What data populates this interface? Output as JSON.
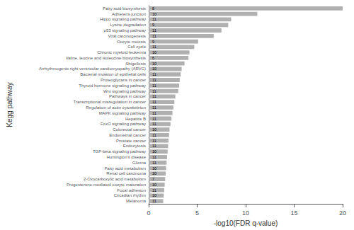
{
  "chart_data": {
    "type": "bar",
    "orientation": "horizontal",
    "categories": [
      "Fatty acid biosynthesis",
      "Adherens junction",
      "Hippo signaling pathway",
      "Lysine degradation",
      "p53 signaling pathway",
      "Viral carcinogenesis",
      "Oocyte meiosis",
      "Cell cycle",
      "Chronic myeloid leukemia",
      "Valine, leucine and isoleucine biosynthesis",
      "Shigellosis",
      "Arrhythmogenic right ventricular cardiomyopathy (ARVC)",
      "Bacterial invasion of epithelial cells",
      "Proteoglycans in cancer",
      "Thyroid hormone signaling pathway",
      "Wnt signaling pathway",
      "Pathways in cancer",
      "Transcriptional misregulation in cancer",
      "Regulation of actin cytoskeleton",
      "MAPK signaling pathway",
      "Hepatitis B",
      "FoxO signaling pathway",
      "Colorectal cancer",
      "Endometrial cancer",
      "Prostate cancer",
      "Endocytosis",
      "TGF-beta signaling pathway",
      "Huntington's disease",
      "Glioma",
      "Fatty acid metabolism",
      "Renal cell carcinoma",
      "2-Oxocarboxylic acid metabolism",
      "Progesterone-mediated oocyte maturation",
      "Focal adhesion",
      "Circadian rhythm",
      "Melanoma"
    ],
    "values": [
      20.0,
      11.2,
      8.5,
      8.2,
      7.5,
      6.7,
      5.1,
      4.7,
      4.2,
      4.1,
      3.7,
      3.4,
      3.3,
      3.2,
      3.15,
      3.05,
      2.75,
      2.65,
      2.55,
      2.45,
      2.35,
      2.25,
      2.15,
      2.1,
      2.05,
      2.0,
      1.95,
      1.9,
      1.85,
      1.8,
      1.75,
      1.7,
      1.65,
      1.6,
      1.55,
      1.5
    ],
    "counts": [
      8,
      10,
      11,
      9,
      11,
      11,
      9,
      11,
      10,
      6,
      10,
      10,
      11,
      11,
      11,
      11,
      11,
      11,
      11,
      11,
      11,
      11,
      10,
      11,
      11,
      11,
      10,
      11,
      11,
      10,
      10,
      7,
      10,
      11,
      10,
      11
    ],
    "color": "#b0b0b0",
    "xlabel": "-log10(FDR q-value)",
    "ylabel": "Kegg pathway",
    "xlim": [
      0,
      20
    ],
    "xticks": [
      0,
      5,
      10,
      15,
      20
    ],
    "grid": false
  }
}
